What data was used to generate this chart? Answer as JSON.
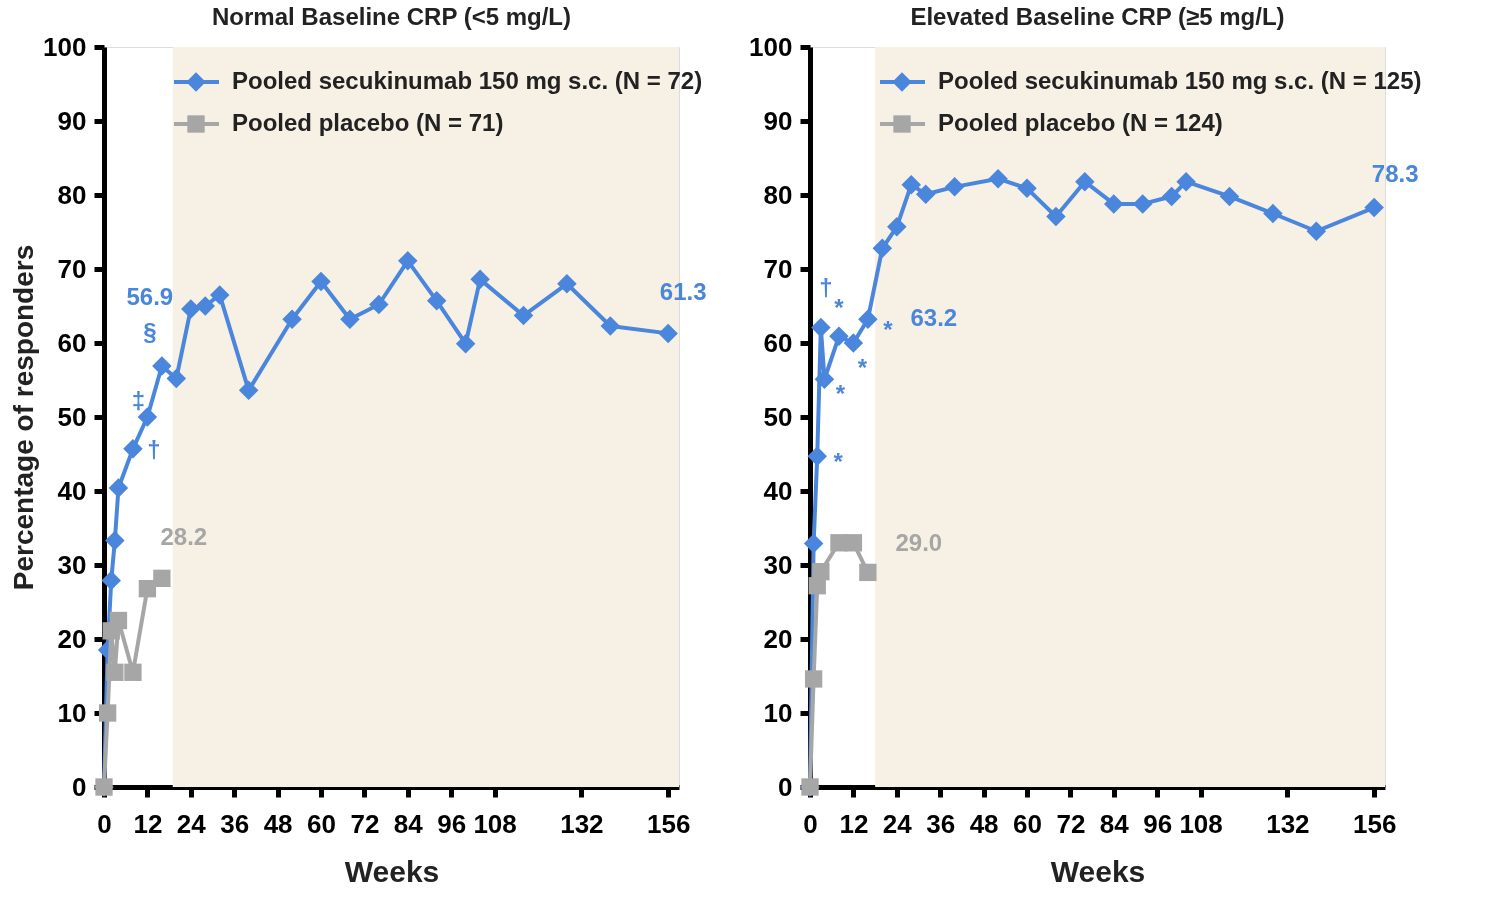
{
  "chart_data": [
    {
      "type": "line",
      "title": "Normal Baseline CRP (<5 mg/L)",
      "xlabel": "Weeks",
      "ylabel": "Percentage of responders",
      "xlim": [
        0,
        159
      ],
      "ylim": [
        0,
        100
      ],
      "xticks": [
        0,
        12,
        24,
        36,
        48,
        60,
        72,
        84,
        96,
        108,
        132,
        156
      ],
      "yticks": [
        0,
        10,
        20,
        30,
        40,
        50,
        60,
        70,
        80,
        90,
        100
      ],
      "grid": false,
      "legend": "top",
      "bands": [
        {
          "axis": "x",
          "from": 19,
          "to": 159,
          "color": "#f7f0e4"
        }
      ],
      "series": [
        {
          "name": "Pooled secukinumab 150 mg s.c. (N = 72)",
          "color": "#4a86dc",
          "marker": "diamond",
          "x": [
            0,
            1,
            2,
            3,
            4,
            8,
            12,
            16,
            20,
            24,
            28,
            32,
            40,
            52,
            60,
            68,
            76,
            84,
            92,
            100,
            104,
            116,
            128,
            140,
            156
          ],
          "values": [
            0,
            18.5,
            27.9,
            33.3,
            40.4,
            45.7,
            50.0,
            56.9,
            55.2,
            64.6,
            65.0,
            66.5,
            53.6,
            63.2,
            68.3,
            63.2,
            65.2,
            71.1,
            65.7,
            59.9,
            68.6,
            63.7,
            68.0,
            62.3,
            61.3
          ]
        },
        {
          "name": "Pooled placebo (N = 71)",
          "color": "#a6a6a6",
          "marker": "square",
          "x": [
            0,
            1,
            2,
            3,
            4,
            8,
            12,
            16
          ],
          "values": [
            0,
            10.0,
            21.1,
            15.5,
            22.5,
            15.5,
            26.8,
            28.2
          ]
        }
      ],
      "annotations": [
        {
          "text": "56.9",
          "x": 16,
          "y": 56.9
        },
        {
          "text": "§",
          "x": 16,
          "y": 56.9
        },
        {
          "text": "‡",
          "x": 12,
          "y": 50.0
        },
        {
          "text": "†",
          "x": 8,
          "y": 45.7
        },
        {
          "text": "28.2",
          "x": 16,
          "y": 28.2
        },
        {
          "text": "61.3",
          "x": 156,
          "y": 61.3
        }
      ]
    },
    {
      "type": "line",
      "title": "Elevated Baseline CRP (≥5 mg/L)",
      "xlabel": "Weeks",
      "xlim": [
        0,
        159
      ],
      "ylim": [
        0,
        100
      ],
      "xticks": [
        0,
        12,
        24,
        36,
        48,
        60,
        72,
        84,
        96,
        108,
        132,
        156
      ],
      "yticks": [
        0,
        10,
        20,
        30,
        40,
        50,
        60,
        70,
        80,
        90,
        100
      ],
      "grid": false,
      "legend": "top",
      "bands": [
        {
          "axis": "x",
          "from": 18,
          "to": 159,
          "color": "#f7f0e4"
        }
      ],
      "series": [
        {
          "name": "Pooled secukinumab 150 mg s.c. (N = 125)",
          "color": "#4a86dc",
          "marker": "diamond",
          "x": [
            0,
            1,
            2,
            3,
            4,
            8,
            12,
            16,
            20,
            24,
            28,
            32,
            40,
            52,
            60,
            68,
            76,
            84,
            92,
            100,
            104,
            116,
            128,
            140,
            156
          ],
          "values": [
            0,
            32.9,
            44.7,
            62.1,
            55.1,
            60.9,
            60.0,
            63.2,
            72.8,
            75.7,
            81.4,
            80.1,
            81.1,
            82.2,
            80.9,
            77.1,
            81.8,
            78.8,
            78.8,
            79.8,
            81.8,
            79.8,
            77.5,
            75.1,
            78.3
          ]
        },
        {
          "name": "Pooled placebo (N = 124)",
          "color": "#a6a6a6",
          "marker": "square",
          "x": [
            0,
            1,
            2,
            3,
            8,
            12,
            16
          ],
          "values": [
            0,
            14.6,
            27.2,
            29.1,
            33.0,
            33.0,
            29.0
          ]
        }
      ],
      "annotations": [
        {
          "text": "†",
          "x": 3,
          "y": 62.1
        },
        {
          "text": "*",
          "x": 8,
          "y": 60.9
        },
        {
          "text": "*",
          "x": 4,
          "y": 55.1
        },
        {
          "text": "*",
          "x": 2,
          "y": 44.7
        },
        {
          "text": "*",
          "x": 12,
          "y": 60.0
        },
        {
          "text": "*",
          "x": 16,
          "y": 63.2
        },
        {
          "text": "63.2",
          "x": 16,
          "y": 63.2
        },
        {
          "text": "29.0",
          "x": 16,
          "y": 29.0
        },
        {
          "text": "78.3",
          "x": 156,
          "y": 78.3
        }
      ]
    }
  ]
}
